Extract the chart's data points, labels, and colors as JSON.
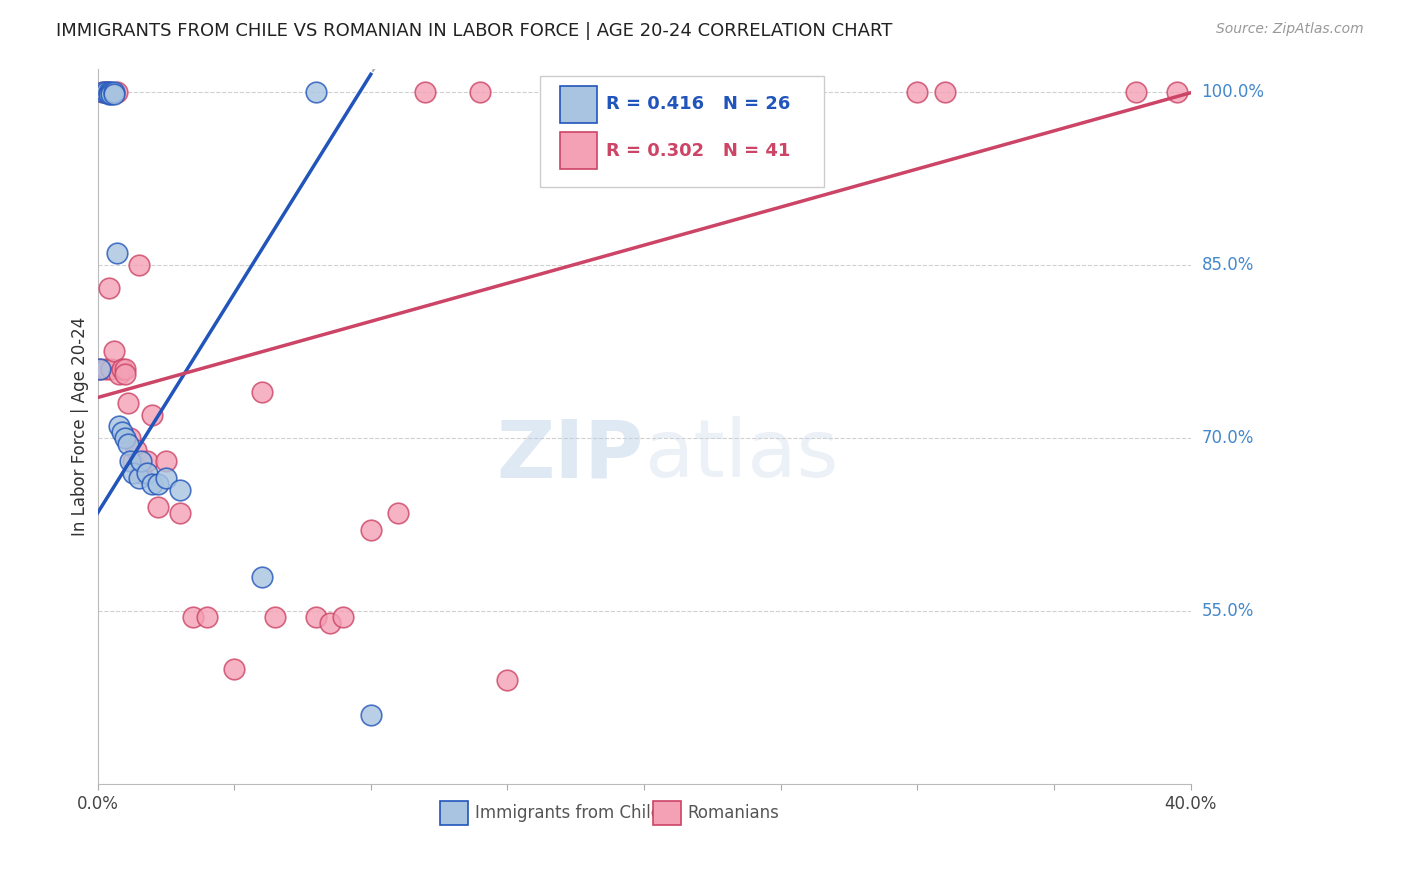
{
  "title": "IMMIGRANTS FROM CHILE VS ROMANIAN IN LABOR FORCE | AGE 20-24 CORRELATION CHART",
  "source": "Source: ZipAtlas.com",
  "ylabel": "In Labor Force | Age 20-24",
  "watermark_zip": "ZIP",
  "watermark_atlas": "atlas",
  "xlim": [
    0.0,
    0.4
  ],
  "ylim": [
    0.4,
    1.02
  ],
  "ytick_vals": [
    0.55,
    0.7,
    0.85,
    1.0
  ],
  "ytick_labels": [
    "55.0%",
    "70.0%",
    "85.0%",
    "100.0%"
  ],
  "xtick_positions": [
    0.0,
    0.05,
    0.1,
    0.15,
    0.2,
    0.25,
    0.3,
    0.35,
    0.4
  ],
  "xtick_labels": [
    "0.0%",
    "",
    "",
    "",
    "",
    "",
    "",
    "",
    "40.0%"
  ],
  "chile_R": 0.416,
  "chile_N": 26,
  "romanian_R": 0.302,
  "romanian_N": 41,
  "chile_color": "#a8c4e0",
  "romanian_color": "#f4a0b5",
  "chile_line_color": "#2255bb",
  "romanian_line_color": "#cc4466",
  "grid_color": "#d0d0d0",
  "axis_color": "#bbbbbb",
  "right_label_color": "#4488cc",
  "chile_x": [
    0.001,
    0.002,
    0.003,
    0.004,
    0.004,
    0.005,
    0.005,
    0.006,
    0.006,
    0.007,
    0.008,
    0.009,
    0.01,
    0.011,
    0.012,
    0.013,
    0.015,
    0.016,
    0.018,
    0.02,
    0.022,
    0.025,
    0.03,
    0.06,
    0.08,
    0.1
  ],
  "chile_y": [
    0.76,
    1.0,
    1.0,
    1.0,
    0.998,
    1.0,
    0.998,
    1.0,
    0.998,
    0.86,
    0.71,
    0.705,
    0.7,
    0.695,
    0.68,
    0.67,
    0.665,
    0.68,
    0.67,
    0.66,
    0.66,
    0.665,
    0.655,
    0.58,
    1.0,
    0.46
  ],
  "romanian_x": [
    0.001,
    0.002,
    0.003,
    0.003,
    0.004,
    0.004,
    0.005,
    0.006,
    0.007,
    0.008,
    0.009,
    0.01,
    0.01,
    0.011,
    0.012,
    0.013,
    0.014,
    0.015,
    0.016,
    0.018,
    0.02,
    0.022,
    0.025,
    0.03,
    0.035,
    0.04,
    0.05,
    0.06,
    0.065,
    0.08,
    0.085,
    0.09,
    0.1,
    0.11,
    0.12,
    0.14,
    0.15,
    0.3,
    0.31,
    0.38,
    0.395
  ],
  "romanian_y": [
    0.76,
    1.0,
    0.76,
    1.0,
    0.83,
    1.0,
    0.76,
    0.775,
    1.0,
    0.755,
    0.76,
    0.76,
    0.755,
    0.73,
    0.7,
    0.68,
    0.69,
    0.85,
    0.67,
    0.68,
    0.72,
    0.64,
    0.68,
    0.635,
    0.545,
    0.545,
    0.5,
    0.74,
    0.545,
    0.545,
    0.54,
    0.545,
    0.62,
    0.635,
    1.0,
    1.0,
    0.49,
    1.0,
    1.0,
    1.0,
    1.0
  ],
  "chile_line_x": [
    0.001,
    0.1
  ],
  "chile_line_y_intercept": 0.635,
  "chile_line_slope": 3.8,
  "romanian_line_x": [
    0.0,
    0.4
  ],
  "romanian_line_y_intercept": 0.735,
  "romanian_line_slope": 0.66
}
